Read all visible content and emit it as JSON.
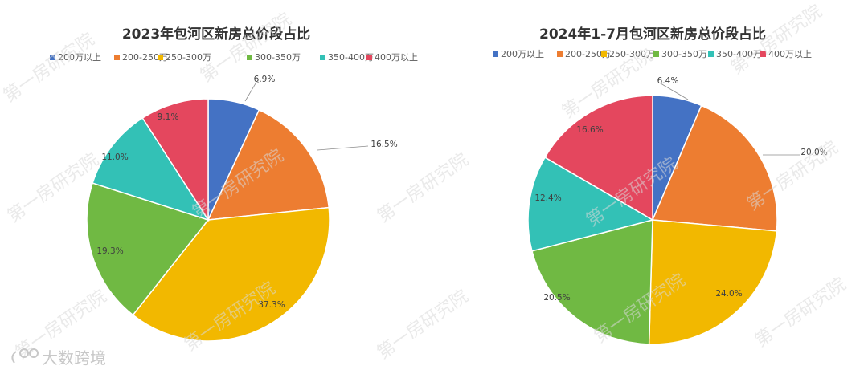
{
  "categories": [
    "200万以上",
    "200-250万",
    "250-300万",
    "300-350万",
    "350-400万",
    "400万以上"
  ],
  "colors": [
    "#4472c4",
    "#ed7d31",
    "#f2b800",
    "#70b943",
    "#33c1b6",
    "#e4475e"
  ],
  "watermark_text": "第一房研究院",
  "brand": {
    "text": "大数跨境",
    "icon": "brand-logo-icon"
  },
  "chart_data": [
    {
      "type": "pie",
      "title": "2023年包河区新房总价段占比",
      "categories": [
        "200万以上",
        "200-250万",
        "250-300万",
        "300-350万",
        "350-400万",
        "400万以上"
      ],
      "values": [
        6.9,
        16.5,
        37.3,
        19.3,
        11.0,
        9.1
      ],
      "labels": [
        "6.9%",
        "16.5%",
        "37.3%",
        "19.3%",
        "11.0%",
        "9.1%"
      ],
      "legend": "top"
    },
    {
      "type": "pie",
      "title": "2024年1-7月包河区新房总价段占比",
      "categories": [
        "200万以上",
        "200-250万",
        "250-300万",
        "300-350万",
        "350-400万",
        "400万以上"
      ],
      "values": [
        6.4,
        20.0,
        24.0,
        20.5,
        12.4,
        16.6
      ],
      "labels": [
        "6.4%",
        "20.0%",
        "24.0%",
        "20.5%",
        "12.4%",
        "16.6%"
      ],
      "legend": "top"
    }
  ]
}
